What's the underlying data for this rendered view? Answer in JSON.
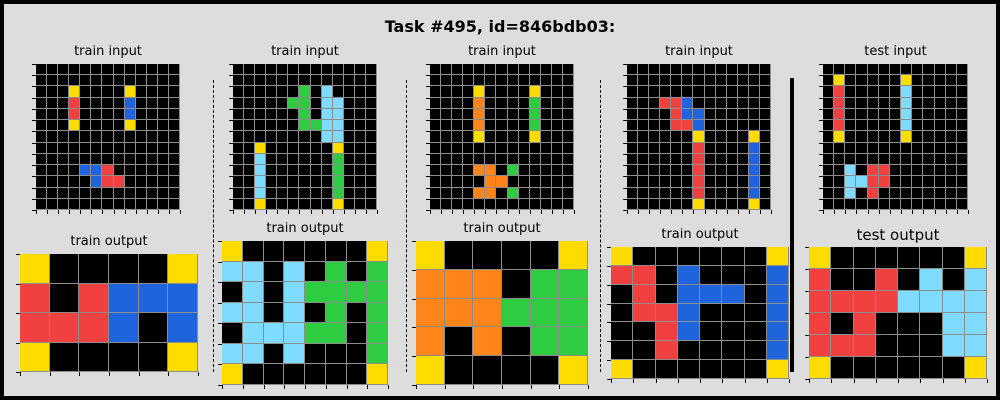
{
  "title": "Task #495, id=846bdb03:",
  "colors": {
    "0": "#000000",
    "1": "#1e64dc",
    "2": "#f04040",
    "3": "#2ecc40",
    "4": "#ffdc00",
    "5": "#aaaaaa",
    "6": "#f012be",
    "7": "#ff851b",
    "8": "#7fdbff",
    "9": "#870c25"
  },
  "panels": [
    {
      "input_label": "train input",
      "input": [
        "0000000000000",
        "0000000000000",
        "0004000040000",
        "0002000010000",
        "0002000010000",
        "0004000040000",
        "0000000000000",
        "0000000000000",
        "0000000000000",
        "0000112000000",
        "0000012200000",
        "0000000000000",
        "0000000000000"
      ],
      "output_label": "train output",
      "output": [
        "400004",
        "202111",
        "222101",
        "400004"
      ]
    },
    {
      "input_label": "train input",
      "input": [
        "0000000000000",
        "0000000000000",
        "0000003080000",
        "0000033088000",
        "0000003088000",
        "0000003388000",
        "0000000088000",
        "0040000004000",
        "0080000003000",
        "0080000003000",
        "0080000003000",
        "0080000003000",
        "0040000004000"
      ],
      "output_label": "train output",
      "output": [
        "40000004",
        "88080303",
        "08083333",
        "88080303",
        "08883303",
        "88080003",
        "40000004"
      ]
    },
    {
      "input_label": "train input",
      "input": [
        "0000000000000",
        "0000000000000",
        "0000400004000",
        "0000700003000",
        "0000700003000",
        "0000700003000",
        "0000400004000",
        "0000000000000",
        "0000000000000",
        "0000770300000",
        "0000077000000",
        "0000770300000",
        "0000000000000"
      ],
      "output_label": "train output",
      "output": [
        "400004",
        "777033",
        "777333",
        "707033",
        "400004"
      ]
    },
    {
      "input_label": "train input",
      "input": [
        "0000000000000",
        "0000000000000",
        "0000000000000",
        "0002210000000",
        "0000211000000",
        "0000221000000",
        "0000004000040",
        "0000002000010",
        "0000002000010",
        "0000002000010",
        "0000002000010",
        "0000002000010",
        "0000004000040"
      ],
      "output_label": "train output",
      "output": [
        "40000004",
        "22010001",
        "02011101",
        "02210001",
        "00210001",
        "00200001",
        "40000004"
      ]
    },
    {
      "input_label": "test input",
      "input": [
        "0000000000000",
        "0400000400000",
        "0200000800000",
        "0200000800000",
        "0200000800000",
        "0200000800000",
        "0400000400000",
        "0000000000000",
        "0000000000000",
        "0080220000000",
        "0088220000000",
        "0080200000000",
        "0000000000000"
      ],
      "output_label": "test output",
      "output": [
        "40000004",
        "20020808",
        "22228888",
        "20200088",
        "22200088",
        "40000004"
      ]
    }
  ]
}
